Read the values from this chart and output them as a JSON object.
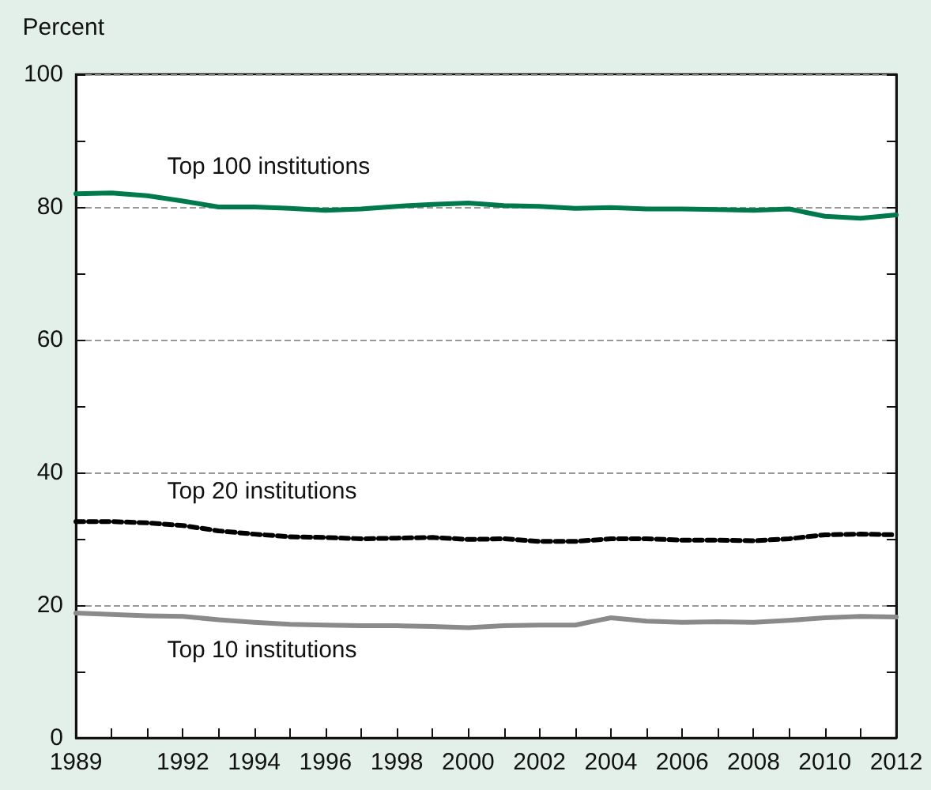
{
  "chart_data": {
    "type": "line",
    "ylabel": "Percent",
    "x": [
      1989,
      1990,
      1991,
      1992,
      1993,
      1994,
      1995,
      1996,
      1997,
      1998,
      1999,
      2000,
      2001,
      2002,
      2003,
      2004,
      2005,
      2006,
      2007,
      2008,
      2009,
      2010,
      2011,
      2012
    ],
    "series": [
      {
        "name": "Top 100 institutions",
        "color": "#007a4d",
        "line_style": "solid",
        "values": [
          82,
          82.1,
          81.7,
          80.9,
          80,
          80,
          79.8,
          79.5,
          79.7,
          80.1,
          80.4,
          80.6,
          80.2,
          80.1,
          79.8,
          79.9,
          79.7,
          79.7,
          79.6,
          79.5,
          79.7,
          78.6,
          78.3,
          78.8
        ]
      },
      {
        "name": "Top 20 institutions",
        "color": "#000000",
        "line_style": "dashed",
        "values": [
          32.6,
          32.6,
          32.4,
          32,
          31.2,
          30.7,
          30.3,
          30.2,
          30,
          30.1,
          30.2,
          29.9,
          30,
          29.6,
          29.6,
          30,
          30,
          29.8,
          29.8,
          29.7,
          30,
          30.6,
          30.7,
          30.6
        ]
      },
      {
        "name": "Top 10 institutions",
        "color": "#8a8a8c",
        "line_style": "solid",
        "values": [
          18.8,
          18.6,
          18.4,
          18.3,
          17.8,
          17.4,
          17.1,
          17,
          16.9,
          16.9,
          16.8,
          16.6,
          16.9,
          17,
          17,
          18.1,
          17.6,
          17.4,
          17.5,
          17.4,
          17.7,
          18.1,
          18.3,
          18.2
        ]
      }
    ],
    "xlim": [
      1989,
      2012
    ],
    "xticks": [
      1989,
      {
        "value": 1990,
        "label": null
      },
      {
        "value": 1991,
        "label": null
      },
      1992,
      {
        "value": 1993,
        "label": null
      },
      1994,
      {
        "value": 1995,
        "label": null
      },
      1996,
      {
        "value": 1997,
        "label": null
      },
      1998,
      {
        "value": 1999,
        "label": null
      },
      2000,
      {
        "value": 2001,
        "label": null
      },
      2002,
      {
        "value": 2003,
        "label": null
      },
      2004,
      {
        "value": 2005,
        "label": null
      },
      2006,
      {
        "value": 2007,
        "label": null
      },
      2008,
      {
        "value": 2009,
        "label": null
      },
      2010,
      {
        "value": 2011,
        "label": null
      },
      2012
    ],
    "ylim": [
      0,
      100
    ],
    "yticks": [
      0,
      {
        "value": 10,
        "label": null
      },
      20,
      {
        "value": 30,
        "label": null
      },
      40,
      {
        "value": 50,
        "label": null
      },
      60,
      {
        "value": 70,
        "label": null
      },
      80,
      {
        "value": 90,
        "label": null
      },
      100
    ],
    "grid": "y",
    "marker": "none",
    "legend": false
  }
}
